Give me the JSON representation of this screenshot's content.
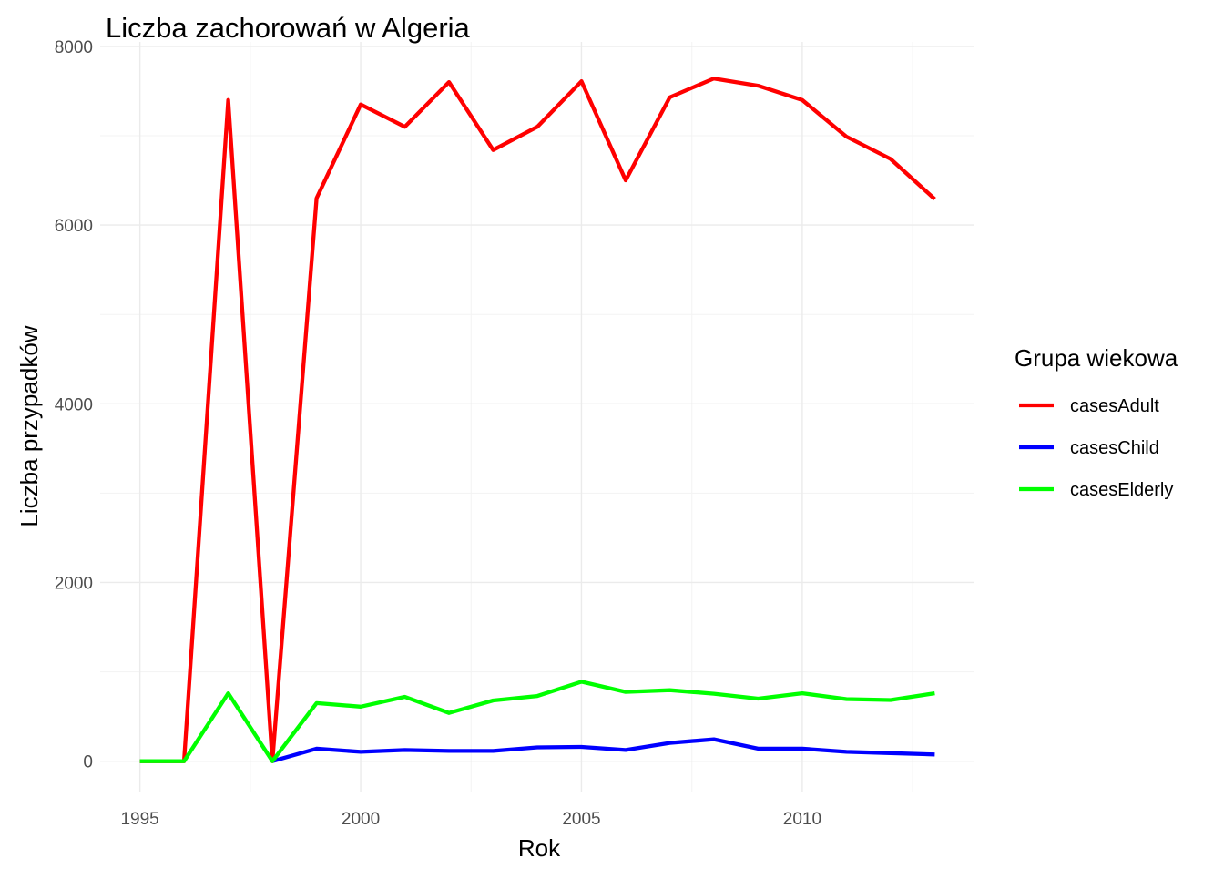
{
  "chart_data": {
    "type": "line",
    "title": "Liczba zachorowań w Algeria",
    "xlabel": "Rok",
    "ylabel": "Liczba przypadków",
    "xlim": [
      1994.1,
      2013.9
    ],
    "ylim": [
      -350,
      8050
    ],
    "x_ticks": [
      1995,
      2000,
      2005,
      2010
    ],
    "x_tick_labels": [
      "1995",
      "2000",
      "2005",
      "2010"
    ],
    "x_minor_ticks": [
      1997.5,
      2002.5,
      2007.5,
      2012.5
    ],
    "y_ticks": [
      0,
      2000,
      4000,
      6000,
      8000
    ],
    "y_tick_labels": [
      "0",
      "2000",
      "4000",
      "6000",
      "8000"
    ],
    "y_minor_ticks": [
      1000,
      3000,
      5000,
      7000
    ],
    "grid": true,
    "legend": {
      "title": "Grupa wiekowa",
      "position": "right"
    },
    "series": [
      {
        "name": "casesAdult",
        "color": "#ff0000",
        "x": [
          1995,
          1996,
          1997,
          1998,
          1999,
          2000,
          2001,
          2002,
          2003,
          2004,
          2005,
          2006,
          2007,
          2008,
          2009,
          2010,
          2011,
          2012,
          2013
        ],
        "values": [
          0,
          0,
          7400,
          0,
          6300,
          7350,
          7100,
          7600,
          6840,
          7100,
          7610,
          6500,
          7430,
          7640,
          7560,
          7400,
          6990,
          6740,
          6290
        ]
      },
      {
        "name": "casesChild",
        "color": "#0000ff",
        "x": [
          1998,
          1999,
          2000,
          2001,
          2002,
          2003,
          2004,
          2005,
          2006,
          2007,
          2008,
          2009,
          2010,
          2011,
          2012,
          2013
        ],
        "values": [
          0,
          140,
          105,
          125,
          115,
          115,
          155,
          160,
          125,
          205,
          245,
          140,
          140,
          105,
          90,
          75
        ]
      },
      {
        "name": "casesElderly",
        "color": "#00ff00",
        "x": [
          1995,
          1996,
          1997,
          1998,
          1999,
          2000,
          2001,
          2002,
          2003,
          2004,
          2005,
          2006,
          2007,
          2008,
          2009,
          2010,
          2011,
          2012,
          2013
        ],
        "values": [
          0,
          0,
          760,
          0,
          650,
          610,
          720,
          540,
          680,
          730,
          890,
          775,
          795,
          755,
          700,
          760,
          695,
          685,
          760
        ]
      }
    ]
  }
}
